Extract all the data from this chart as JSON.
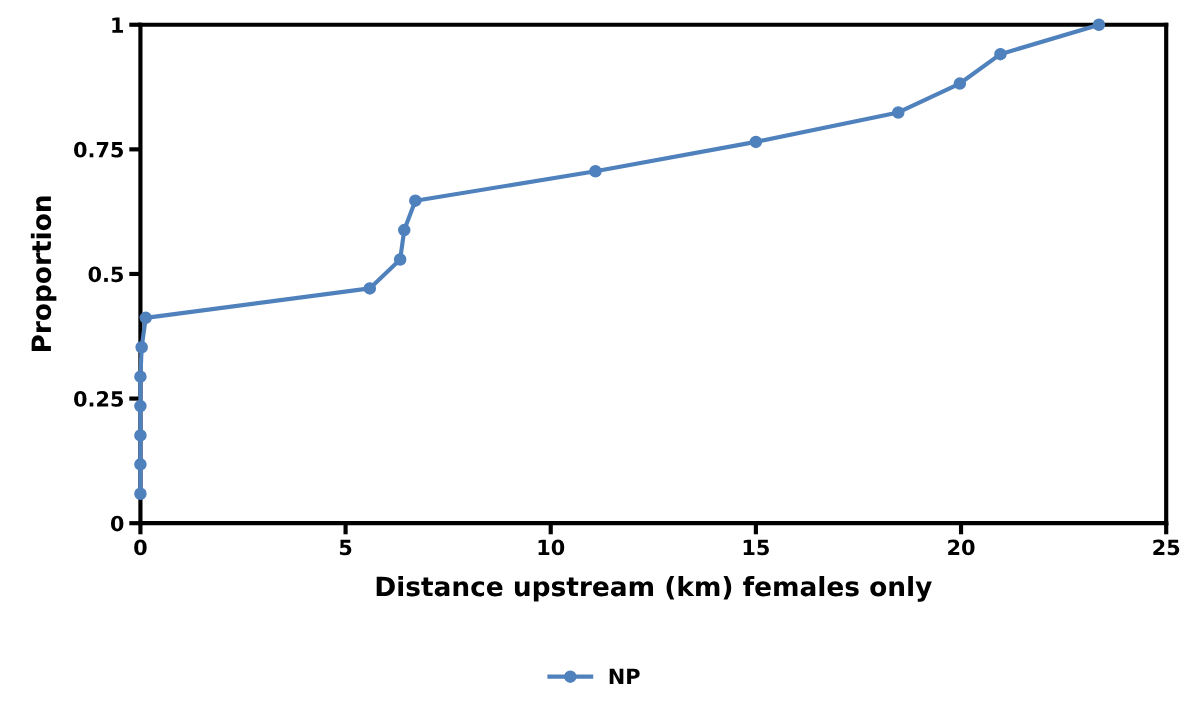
{
  "chart_data": {
    "type": "line",
    "xlabel": "Distance upstream (km) females only",
    "ylabel": "Proportion",
    "series": [
      {
        "name": "NP",
        "color": "#4f81bd",
        "x": [
          0,
          0,
          0,
          0,
          0,
          0.03,
          0.13,
          5.59,
          6.33,
          6.43,
          6.7,
          11.09,
          15.0,
          18.47,
          19.97,
          20.96,
          23.36
        ],
        "values": [
          0.059,
          0.118,
          0.176,
          0.235,
          0.294,
          0.353,
          0.412,
          0.471,
          0.529,
          0.588,
          0.647,
          0.706,
          0.765,
          0.824,
          0.882,
          0.941,
          1.0
        ]
      }
    ],
    "xlim": [
      0,
      25
    ],
    "xticks": [
      0,
      5,
      10,
      15,
      20,
      25
    ],
    "ylim": [
      0,
      1
    ],
    "yticks": [
      0,
      0.25,
      0.5,
      0.75,
      1
    ],
    "marker": "circle",
    "line_style": "solid",
    "grid": false,
    "legend": "bottom"
  }
}
